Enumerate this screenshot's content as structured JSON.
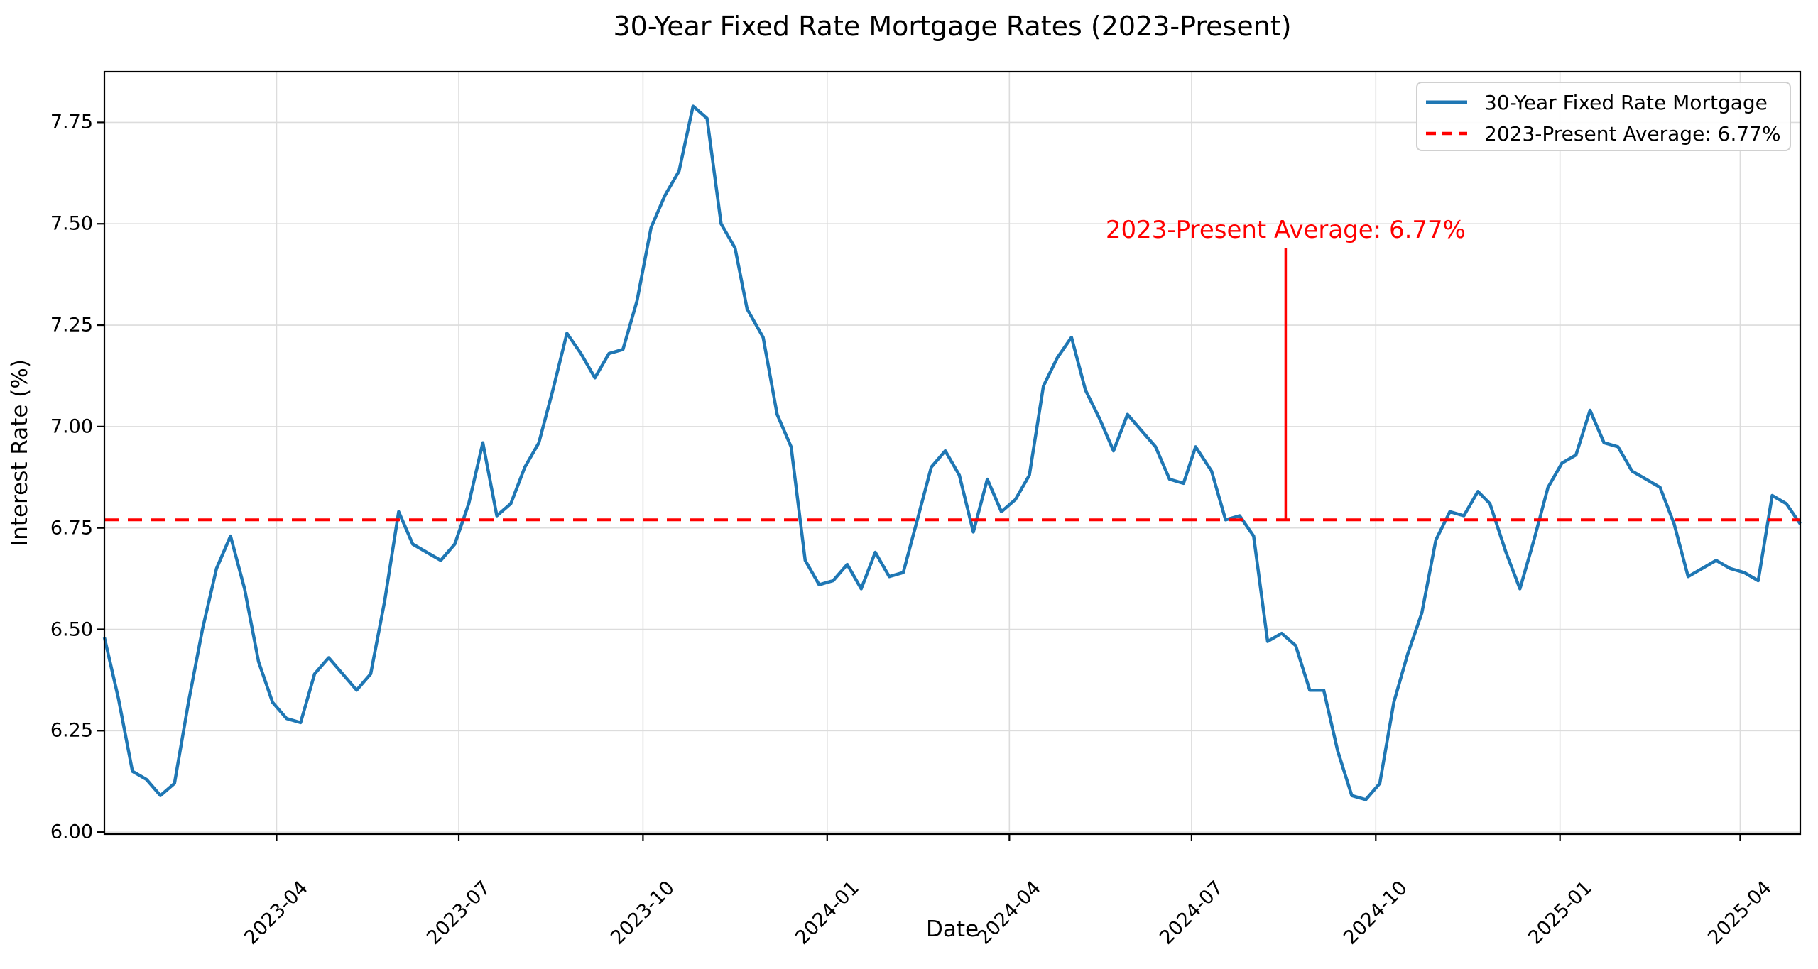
{
  "chart_data": {
    "type": "line",
    "title": "30-Year Fixed Rate Mortgage Rates (2023-Present)",
    "xlabel": "Date",
    "ylabel": "Interest Rate (%)",
    "grid": true,
    "legend_position": "upper right",
    "xlim": [
      "2023-01-05",
      "2025-05-01"
    ],
    "ylim": [
      5.995,
      7.875
    ],
    "x_tick_labels": [
      "2023-04",
      "2023-07",
      "2023-10",
      "2024-01",
      "2024-04",
      "2024-07",
      "2024-10",
      "2025-01",
      "2025-04"
    ],
    "y_tick_labels": [
      "6.00",
      "6.25",
      "6.50",
      "6.75",
      "7.00",
      "7.25",
      "7.50",
      "7.75"
    ],
    "colors": {
      "series": "#1f77b4",
      "average": "#ff0000",
      "grid": "#dcdcdc",
      "spine": "#000000"
    },
    "average_line": {
      "value": 6.77,
      "style": "dashed"
    },
    "annotation": {
      "text": "2023-Present Average: 6.77%",
      "color": "#ff0000",
      "date": "2024-08-17",
      "text_y": 7.485,
      "line_top_y": 7.44,
      "line_bottom_y": 6.77
    },
    "series": [
      {
        "name": "30-Year Fixed Rate Mortgage",
        "color": "#1f77b4",
        "style": "solid",
        "dates": [
          "2023-01-05",
          "2023-01-12",
          "2023-01-19",
          "2023-01-26",
          "2023-02-02",
          "2023-02-09",
          "2023-02-16",
          "2023-02-23",
          "2023-03-02",
          "2023-03-09",
          "2023-03-16",
          "2023-03-23",
          "2023-03-30",
          "2023-04-06",
          "2023-04-13",
          "2023-04-20",
          "2023-04-27",
          "2023-05-04",
          "2023-05-11",
          "2023-05-18",
          "2023-05-25",
          "2023-06-01",
          "2023-06-08",
          "2023-06-15",
          "2023-06-22",
          "2023-06-29",
          "2023-07-06",
          "2023-07-13",
          "2023-07-20",
          "2023-07-27",
          "2023-08-03",
          "2023-08-10",
          "2023-08-17",
          "2023-08-24",
          "2023-08-31",
          "2023-09-07",
          "2023-09-14",
          "2023-09-21",
          "2023-09-28",
          "2023-10-05",
          "2023-10-12",
          "2023-10-19",
          "2023-10-26",
          "2023-11-02",
          "2023-11-09",
          "2023-11-16",
          "2023-11-22",
          "2023-11-30",
          "2023-12-07",
          "2023-12-14",
          "2023-12-21",
          "2023-12-28",
          "2024-01-04",
          "2024-01-11",
          "2024-01-18",
          "2024-01-25",
          "2024-02-01",
          "2024-02-08",
          "2024-02-15",
          "2024-02-22",
          "2024-02-29",
          "2024-03-07",
          "2024-03-14",
          "2024-03-21",
          "2024-03-28",
          "2024-04-04",
          "2024-04-11",
          "2024-04-18",
          "2024-04-25",
          "2024-05-02",
          "2024-05-09",
          "2024-05-16",
          "2024-05-23",
          "2024-05-30",
          "2024-06-06",
          "2024-06-13",
          "2024-06-20",
          "2024-06-27",
          "2024-07-03",
          "2024-07-11",
          "2024-07-18",
          "2024-07-25",
          "2024-08-01",
          "2024-08-08",
          "2024-08-15",
          "2024-08-22",
          "2024-08-29",
          "2024-09-05",
          "2024-09-12",
          "2024-09-19",
          "2024-09-26",
          "2024-10-03",
          "2024-10-10",
          "2024-10-17",
          "2024-10-24",
          "2024-10-31",
          "2024-11-07",
          "2024-11-14",
          "2024-11-21",
          "2024-11-27",
          "2024-12-05",
          "2024-12-12",
          "2024-12-19",
          "2024-12-26",
          "2025-01-02",
          "2025-01-09",
          "2025-01-16",
          "2025-01-23",
          "2025-01-30",
          "2025-02-06",
          "2025-02-13",
          "2025-02-20",
          "2025-02-27",
          "2025-03-06",
          "2025-03-13",
          "2025-03-20",
          "2025-03-27",
          "2025-04-03",
          "2025-04-10",
          "2025-04-17",
          "2025-04-24",
          "2025-05-01"
        ],
        "values": [
          6.48,
          6.33,
          6.15,
          6.13,
          6.09,
          6.12,
          6.32,
          6.5,
          6.65,
          6.73,
          6.6,
          6.42,
          6.32,
          6.28,
          6.27,
          6.39,
          6.43,
          6.39,
          6.35,
          6.39,
          6.57,
          6.79,
          6.71,
          6.69,
          6.67,
          6.71,
          6.81,
          6.96,
          6.78,
          6.81,
          6.9,
          6.96,
          7.09,
          7.23,
          7.18,
          7.12,
          7.18,
          7.19,
          7.31,
          7.49,
          7.57,
          7.63,
          7.79,
          7.76,
          7.5,
          7.44,
          7.29,
          7.22,
          7.03,
          6.95,
          6.67,
          6.61,
          6.62,
          6.66,
          6.6,
          6.69,
          6.63,
          6.64,
          6.77,
          6.9,
          6.94,
          6.88,
          6.74,
          6.87,
          6.79,
          6.82,
          6.88,
          7.1,
          7.17,
          7.22,
          7.09,
          7.02,
          6.94,
          7.03,
          6.99,
          6.95,
          6.87,
          6.86,
          6.95,
          6.89,
          6.77,
          6.78,
          6.73,
          6.47,
          6.49,
          6.46,
          6.35,
          6.35,
          6.2,
          6.09,
          6.08,
          6.12,
          6.32,
          6.44,
          6.54,
          6.72,
          6.79,
          6.78,
          6.84,
          6.81,
          6.69,
          6.6,
          6.72,
          6.85,
          6.91,
          6.93,
          7.04,
          6.96,
          6.95,
          6.89,
          6.87,
          6.85,
          6.76,
          6.63,
          6.65,
          6.67,
          6.65,
          6.64,
          6.62,
          6.83,
          6.81,
          6.76
        ]
      },
      {
        "name": "2023-Present Average: 6.77%",
        "color": "#ff0000",
        "style": "dashed",
        "average_value": 6.77
      }
    ]
  }
}
